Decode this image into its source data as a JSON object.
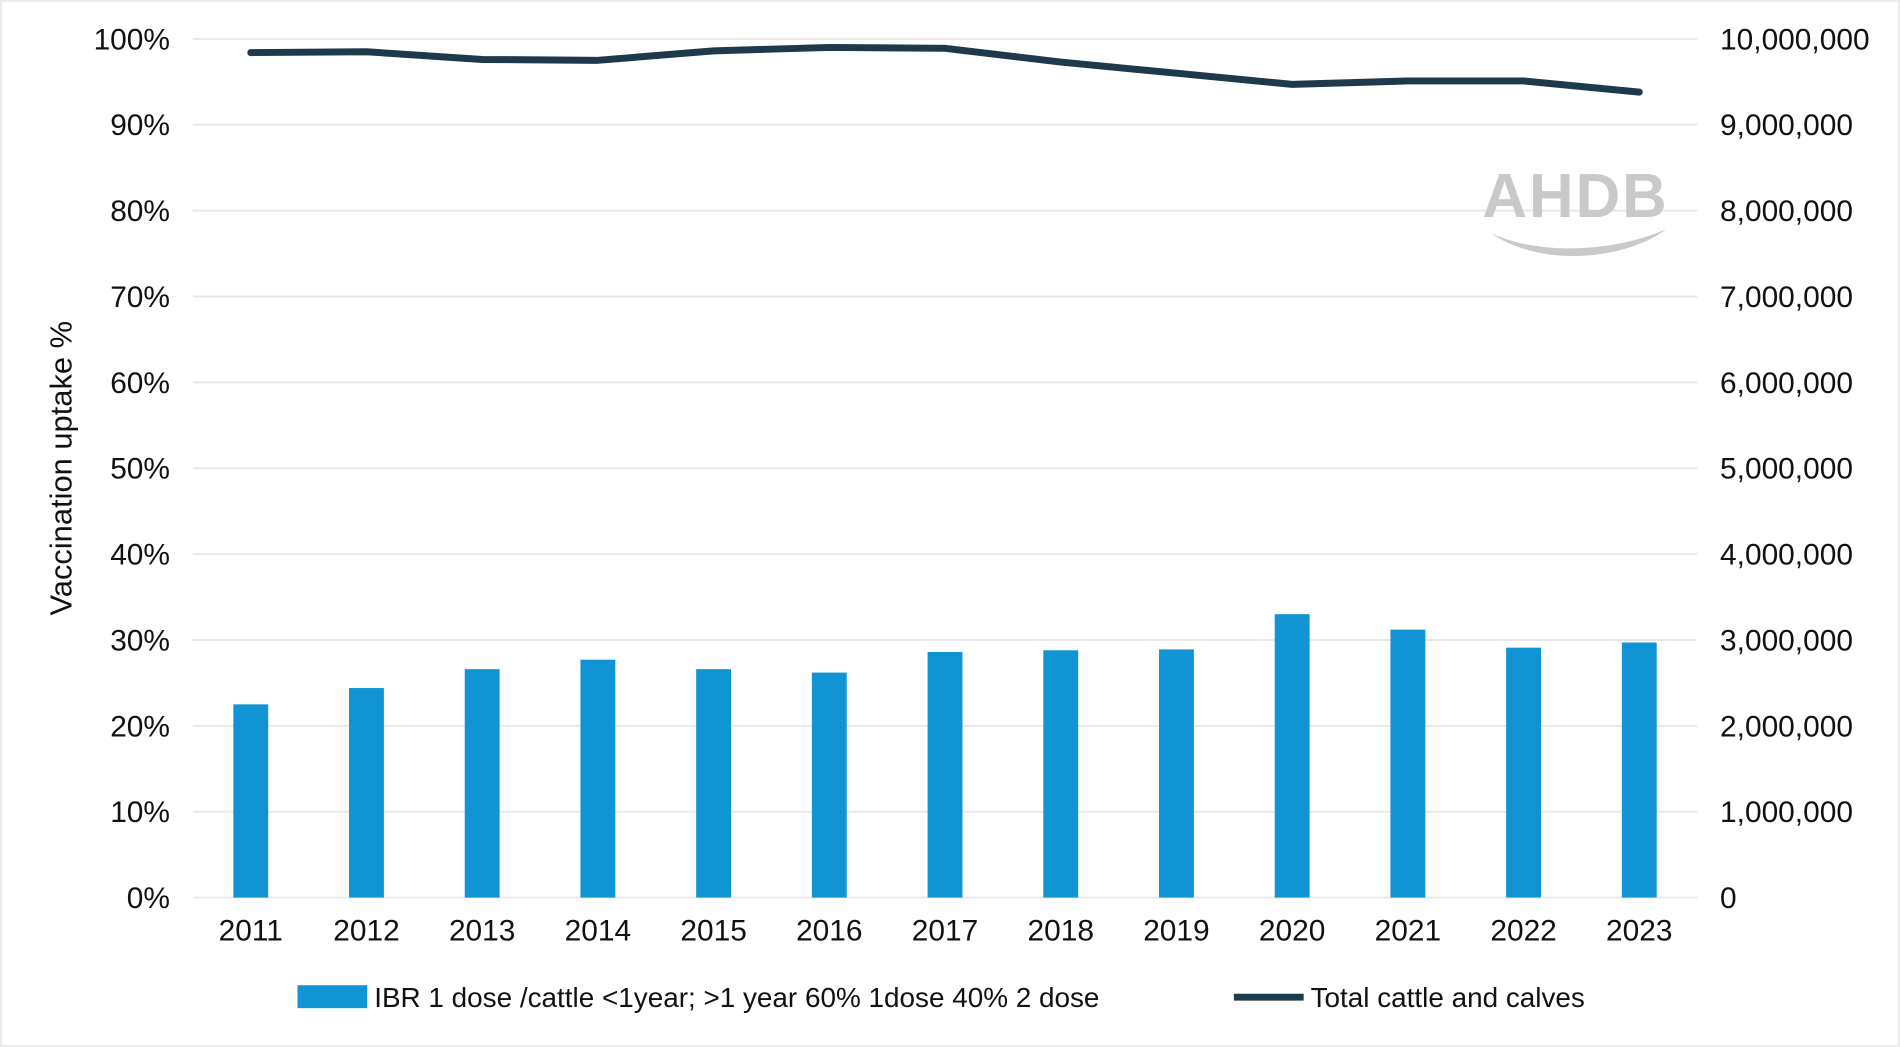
{
  "chart_data": {
    "type": "combo-bar-line",
    "categories": [
      "2011",
      "2012",
      "2013",
      "2014",
      "2015",
      "2016",
      "2017",
      "2018",
      "2019",
      "2020",
      "2021",
      "2022",
      "2023"
    ],
    "series": [
      {
        "name": "IBR 1 dose /cattle <1year; >1 year 60% 1dose 40% 2 dose",
        "type": "bar",
        "axis": "left",
        "color": "#1094d3",
        "values": [
          22.5,
          24.4,
          26.6,
          27.7,
          26.6,
          26.2,
          28.6,
          28.8,
          28.9,
          33.0,
          31.2,
          29.1,
          29.7
        ]
      },
      {
        "name": "Total cattle and calves",
        "type": "line",
        "axis": "right",
        "color": "#1c3a49",
        "values": [
          9840000,
          9850000,
          9760000,
          9750000,
          9860000,
          9900000,
          9890000,
          9730000,
          9600000,
          9470000,
          9510000,
          9510000,
          9380000
        ]
      }
    ],
    "left_axis": {
      "label": "Vaccination uptake %",
      "min": 0,
      "max": 100,
      "step": 10,
      "tick_labels": [
        "0%",
        "10%",
        "20%",
        "30%",
        "40%",
        "50%",
        "60%",
        "70%",
        "80%",
        "90%",
        "100%"
      ]
    },
    "right_axis": {
      "label": "",
      "min": 0,
      "max": 10000000,
      "step": 1000000,
      "tick_labels": [
        "0",
        "1,000,000",
        "2,000,000",
        "3,000,000",
        "4,000,000",
        "5,000,000",
        "6,000,000",
        "7,000,000",
        "8,000,000",
        "9,000,000",
        "10,000,000"
      ]
    },
    "grid": true,
    "grid_color": "#e8e8e8",
    "legend_position": "bottom",
    "watermark": "AHDB",
    "watermark_color": "#c9c9c9"
  }
}
